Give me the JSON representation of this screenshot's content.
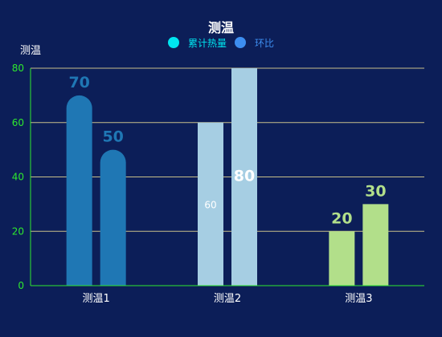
{
  "chart_data": {
    "type": "bar",
    "title": "测温",
    "ylabel": "测温",
    "xlabel": "",
    "categories": [
      "测温1",
      "测温2",
      "测温3"
    ],
    "ylim": [
      0,
      80
    ],
    "yticks": [
      0,
      20,
      40,
      60,
      80
    ],
    "grid": true,
    "legend_position": "top-center",
    "legend": [
      {
        "name": "累计热量",
        "color": "#00e5f0"
      },
      {
        "name": "环比",
        "color": "#3d8ef0"
      }
    ],
    "series": [
      {
        "values": [
          70,
          60,
          20
        ]
      },
      {
        "values": [
          50,
          80,
          30
        ]
      }
    ],
    "category_colors": [
      "#1f77b4",
      "#a6cee3",
      "#b2df8a"
    ],
    "data_labels": [
      [
        {
          "text": "70",
          "color": "#1f77b4",
          "pos": "top"
        },
        {
          "text": "60",
          "color": "#ffffff",
          "pos": "inside"
        },
        {
          "text": "20",
          "color": "#b2df8a",
          "pos": "top"
        }
      ],
      [
        {
          "text": "50",
          "color": "#1f77b4",
          "pos": "top"
        },
        {
          "text": "80",
          "color": "#ffffff",
          "pos": "inside"
        },
        {
          "text": "30",
          "color": "#b2df8a",
          "pos": "top"
        }
      ]
    ],
    "colors": {
      "background": "#0c1e58",
      "title": "#ffffff",
      "ylabel": "#ffffff",
      "y_tick_labels": "#2ee82e",
      "x_tick_labels": "#ffffff",
      "axis_line": "#2ee82e",
      "gridline": "#c8bf8a",
      "legend_text_0": "#00e5f0",
      "legend_text_1": "#3d8ef0"
    }
  }
}
